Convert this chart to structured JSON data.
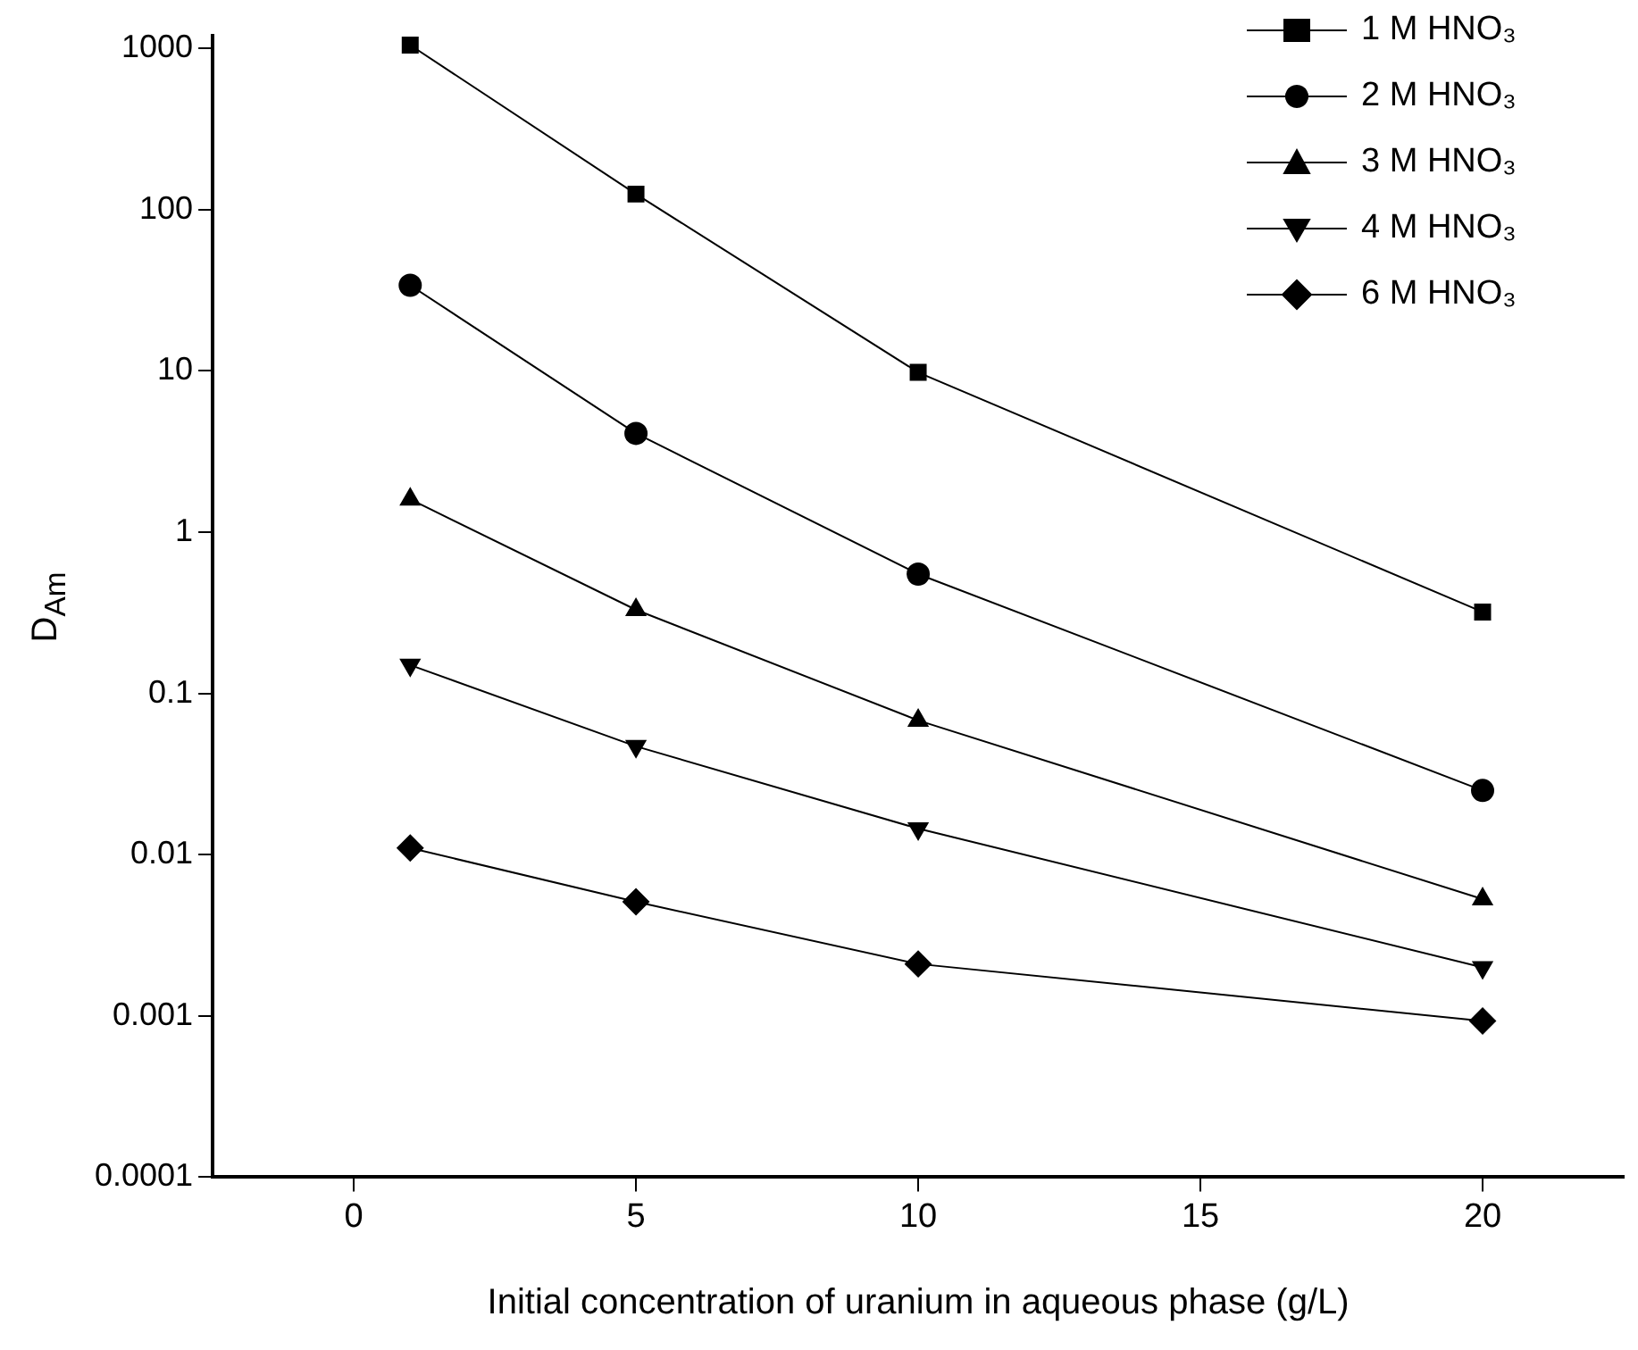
{
  "chart_data": {
    "type": "line",
    "xlabel": "Initial concentration of uranium in aqueous phase (g/L)",
    "ylabel": "D$_{Am}$",
    "x": [
      1,
      5,
      10,
      20
    ],
    "xlim": [
      -2.5,
      22.5
    ],
    "xticks": [
      0,
      5,
      10,
      15,
      20
    ],
    "ylim": [
      0.0001,
      1200
    ],
    "yticks": [
      0.0001,
      0.001,
      0.01,
      0.1,
      1,
      10,
      100,
      1000
    ],
    "log": "y",
    "grid": false,
    "legend": "top right",
    "line_style": "solid",
    "series": [
      {
        "name": "1 M HNO₃",
        "color": "#000000",
        "marker": "square",
        "values": [
          1050,
          125,
          9.8,
          0.32
        ]
      },
      {
        "name": "2 M HNO₃",
        "color": "#000000",
        "marker": "circle",
        "values": [
          34,
          4.1,
          0.55,
          0.025
        ]
      },
      {
        "name": "3 M HNO₃",
        "color": "#000000",
        "marker": "triangle",
        "values": [
          1.6,
          0.33,
          0.068,
          0.0053
        ]
      },
      {
        "name": "4 M HNO₃",
        "color": "#000000",
        "marker": "triangle-down",
        "values": [
          0.15,
          0.047,
          0.0145,
          0.002
        ]
      },
      {
        "name": "6 M HNO₃",
        "color": "#000000",
        "marker": "diamond",
        "values": [
          0.011,
          0.0051,
          0.0021,
          0.00093
        ]
      }
    ]
  }
}
